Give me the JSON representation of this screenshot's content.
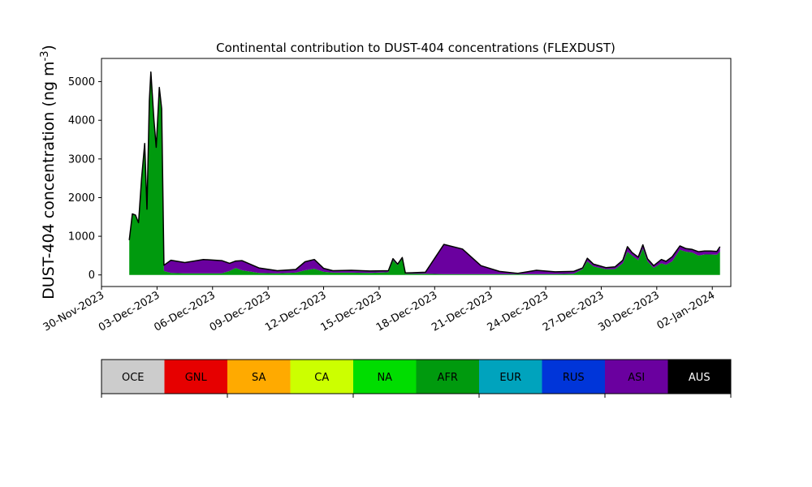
{
  "chart_data": {
    "type": "area",
    "title": "Continental contribution to DUST-404 concentrations (FLEXDUST)",
    "ylabel": "DUST-404 concentration (ng m",
    "ylabel_sup": "-3",
    "ylabel_close": ")",
    "xlabel": "",
    "xlim": [
      "2023-11-30",
      "2024-01-03"
    ],
    "ylim": [
      -300,
      5600
    ],
    "yticks": [
      0,
      1000,
      2000,
      3000,
      4000,
      5000
    ],
    "xticks": [
      "2023-11-30",
      "2023-12-03",
      "2023-12-06",
      "2023-12-09",
      "2023-12-12",
      "2023-12-15",
      "2023-12-18",
      "2023-12-21",
      "2023-12-24",
      "2023-12-27",
      "2023-12-30",
      "2024-01-02"
    ],
    "xtick_labels": [
      "30-Nov-2023",
      "03-Dec-2023",
      "06-Dec-2023",
      "09-Dec-2023",
      "12-Dec-2023",
      "15-Dec-2023",
      "18-Dec-2023",
      "21-Dec-2023",
      "24-Dec-2023",
      "27-Dec-2023",
      "30-Dec-2023",
      "02-Jan-2024"
    ],
    "grid": false,
    "series": [
      {
        "name": "AFR",
        "color": "#009a0e",
        "points": [
          [
            "2023-12-01 12:00",
            900
          ],
          [
            "2023-12-01 16:00",
            1580
          ],
          [
            "2023-12-01 20:00",
            1550
          ],
          [
            "2023-12-02 00:00",
            1350
          ],
          [
            "2023-12-02 04:00",
            2500
          ],
          [
            "2023-12-02 08:00",
            3400
          ],
          [
            "2023-12-02 11:00",
            1700
          ],
          [
            "2023-12-02 14:00",
            4500
          ],
          [
            "2023-12-02 16:00",
            5250
          ],
          [
            "2023-12-02 20:00",
            4000
          ],
          [
            "2023-12-02 23:00",
            3300
          ],
          [
            "2023-12-03 03:00",
            4850
          ],
          [
            "2023-12-03 06:00",
            4300
          ],
          [
            "2023-12-03 09:00",
            100
          ],
          [
            "2023-12-03 18:00",
            50
          ],
          [
            "2023-12-04 12:00",
            40
          ],
          [
            "2023-12-05 12:00",
            40
          ],
          [
            "2023-12-06 12:00",
            40
          ],
          [
            "2023-12-06 22:00",
            100
          ],
          [
            "2023-12-07 06:00",
            180
          ],
          [
            "2023-12-07 14:00",
            120
          ],
          [
            "2023-12-08 12:00",
            50
          ],
          [
            "2023-12-09 12:00",
            40
          ],
          [
            "2023-12-10 12:00",
            60
          ],
          [
            "2023-12-11 00:00",
            120
          ],
          [
            "2023-12-11 12:00",
            160
          ],
          [
            "2023-12-12 00:00",
            80
          ],
          [
            "2023-12-12 12:00",
            60
          ],
          [
            "2023-12-13 12:00",
            60
          ],
          [
            "2023-12-14 12:00",
            50
          ],
          [
            "2023-12-15 12:00",
            70
          ],
          [
            "2023-12-15 18:00",
            380
          ],
          [
            "2023-12-16 00:00",
            250
          ],
          [
            "2023-12-16 06:00",
            420
          ],
          [
            "2023-12-16 10:00",
            30
          ],
          [
            "2023-12-17 12:00",
            30
          ],
          [
            "2023-12-18 12:00",
            20
          ],
          [
            "2023-12-19 12:00",
            20
          ],
          [
            "2023-12-20 12:00",
            20
          ],
          [
            "2023-12-21 12:00",
            20
          ],
          [
            "2023-12-22 12:00",
            20
          ],
          [
            "2023-12-23 12:00",
            20
          ],
          [
            "2023-12-24 12:00",
            20
          ],
          [
            "2023-12-25 12:00",
            30
          ],
          [
            "2023-12-26 00:00",
            150
          ],
          [
            "2023-12-26 06:00",
            350
          ],
          [
            "2023-12-26 14:00",
            220
          ],
          [
            "2023-12-27 06:00",
            150
          ],
          [
            "2023-12-27 18:00",
            150
          ],
          [
            "2023-12-28 04:00",
            300
          ],
          [
            "2023-12-28 10:00",
            600
          ],
          [
            "2023-12-28 16:00",
            500
          ],
          [
            "2023-12-29 00:00",
            380
          ],
          [
            "2023-12-29 06:00",
            680
          ],
          [
            "2023-12-29 12:00",
            350
          ],
          [
            "2023-12-29 20:00",
            180
          ],
          [
            "2023-12-30 06:00",
            300
          ],
          [
            "2023-12-30 12:00",
            260
          ],
          [
            "2023-12-30 20:00",
            350
          ],
          [
            "2023-12-31 06:00",
            650
          ],
          [
            "2023-12-31 14:00",
            600
          ],
          [
            "2023-12-31 22:00",
            580
          ],
          [
            "2024-01-01 06:00",
            500
          ],
          [
            "2024-01-01 14:00",
            530
          ],
          [
            "2024-01-01 22:00",
            530
          ],
          [
            "2024-01-02 06:00",
            520
          ],
          [
            "2024-01-02 10:00",
            600
          ]
        ]
      },
      {
        "name": "ASI",
        "color": "#6a009f",
        "points": [
          [
            "2023-12-01 12:00",
            0
          ],
          [
            "2023-12-01 16:00",
            0
          ],
          [
            "2023-12-01 20:00",
            0
          ],
          [
            "2023-12-02 00:00",
            0
          ],
          [
            "2023-12-02 04:00",
            0
          ],
          [
            "2023-12-02 08:00",
            0
          ],
          [
            "2023-12-02 11:00",
            0
          ],
          [
            "2023-12-02 14:00",
            0
          ],
          [
            "2023-12-02 16:00",
            0
          ],
          [
            "2023-12-02 20:00",
            0
          ],
          [
            "2023-12-02 23:00",
            0
          ],
          [
            "2023-12-03 03:00",
            0
          ],
          [
            "2023-12-03 06:00",
            0
          ],
          [
            "2023-12-03 09:00",
            150
          ],
          [
            "2023-12-03 18:00",
            330
          ],
          [
            "2023-12-04 12:00",
            280
          ],
          [
            "2023-12-05 12:00",
            360
          ],
          [
            "2023-12-06 12:00",
            330
          ],
          [
            "2023-12-06 22:00",
            200
          ],
          [
            "2023-12-07 06:00",
            180
          ],
          [
            "2023-12-07 14:00",
            250
          ],
          [
            "2023-12-08 12:00",
            130
          ],
          [
            "2023-12-09 12:00",
            70
          ],
          [
            "2023-12-10 12:00",
            80
          ],
          [
            "2023-12-11 00:00",
            220
          ],
          [
            "2023-12-11 12:00",
            240
          ],
          [
            "2023-12-12 00:00",
            90
          ],
          [
            "2023-12-12 12:00",
            50
          ],
          [
            "2023-12-13 12:00",
            60
          ],
          [
            "2023-12-14 12:00",
            50
          ],
          [
            "2023-12-15 12:00",
            40
          ],
          [
            "2023-12-15 18:00",
            40
          ],
          [
            "2023-12-16 00:00",
            30
          ],
          [
            "2023-12-16 06:00",
            30
          ],
          [
            "2023-12-16 10:00",
            20
          ],
          [
            "2023-12-17 12:00",
            40
          ],
          [
            "2023-12-18 12:00",
            770
          ],
          [
            "2023-12-19 12:00",
            650
          ],
          [
            "2023-12-20 12:00",
            220
          ],
          [
            "2023-12-21 12:00",
            70
          ],
          [
            "2023-12-22 12:00",
            20
          ],
          [
            "2023-12-23 12:00",
            100
          ],
          [
            "2023-12-24 12:00",
            60
          ],
          [
            "2023-12-25 12:00",
            60
          ],
          [
            "2023-12-26 00:00",
            30
          ],
          [
            "2023-12-26 06:00",
            80
          ],
          [
            "2023-12-26 14:00",
            60
          ],
          [
            "2023-12-27 06:00",
            40
          ],
          [
            "2023-12-27 18:00",
            60
          ],
          [
            "2023-12-28 04:00",
            80
          ],
          [
            "2023-12-28 10:00",
            130
          ],
          [
            "2023-12-28 16:00",
            80
          ],
          [
            "2023-12-29 00:00",
            80
          ],
          [
            "2023-12-29 06:00",
            100
          ],
          [
            "2023-12-29 12:00",
            70
          ],
          [
            "2023-12-29 20:00",
            60
          ],
          [
            "2023-12-30 06:00",
            100
          ],
          [
            "2023-12-30 12:00",
            90
          ],
          [
            "2023-12-30 20:00",
            120
          ],
          [
            "2023-12-31 06:00",
            100
          ],
          [
            "2023-12-31 14:00",
            80
          ],
          [
            "2023-12-31 22:00",
            80
          ],
          [
            "2024-01-01 06:00",
            100
          ],
          [
            "2024-01-01 14:00",
            90
          ],
          [
            "2024-01-01 22:00",
            90
          ],
          [
            "2024-01-02 06:00",
            90
          ],
          [
            "2024-01-02 10:00",
            130
          ]
        ]
      }
    ],
    "legend": {
      "placement": "below",
      "entries": [
        {
          "label": "OCE",
          "color": "#cccccc",
          "text_color": "#000000"
        },
        {
          "label": "GNL",
          "color": "#e60000",
          "text_color": "#000000"
        },
        {
          "label": "SA",
          "color": "#ffaa00",
          "text_color": "#000000"
        },
        {
          "label": "CA",
          "color": "#ccff00",
          "text_color": "#000000"
        },
        {
          "label": "NA",
          "color": "#00dd00",
          "text_color": "#000000"
        },
        {
          "label": "AFR",
          "color": "#009a0e",
          "text_color": "#000000"
        },
        {
          "label": "EUR",
          "color": "#00a3bd",
          "text_color": "#000000"
        },
        {
          "label": "RUS",
          "color": "#0035d9",
          "text_color": "#000000"
        },
        {
          "label": "ASI",
          "color": "#6a009f",
          "text_color": "#000000"
        },
        {
          "label": "AUS",
          "color": "#000000",
          "text_color": "#ffffff"
        }
      ]
    },
    "total_line_color": "#000000"
  }
}
